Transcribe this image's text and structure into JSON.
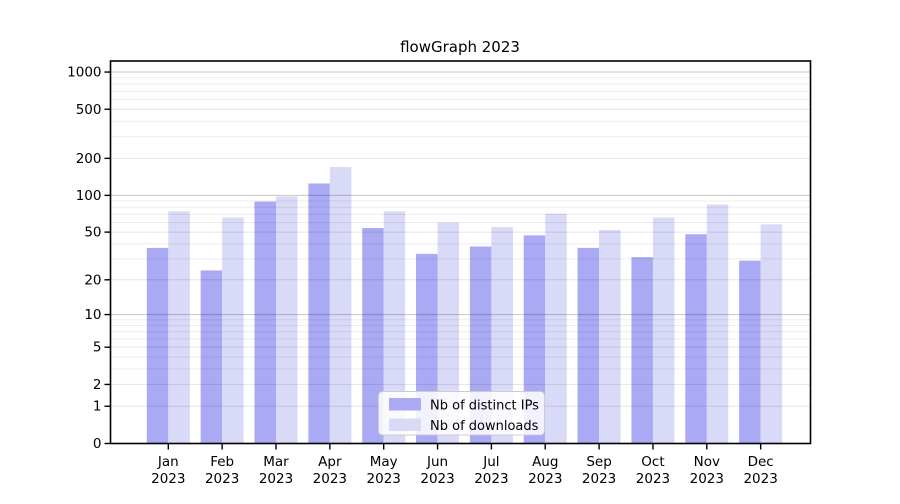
{
  "title": "flowGraph 2023",
  "chart_data": {
    "type": "bar",
    "title": "flowGraph 2023",
    "categories": [
      "Jan 2023",
      "Feb 2023",
      "Mar 2023",
      "Apr 2023",
      "May 2023",
      "Jun 2023",
      "Jul 2023",
      "Aug 2023",
      "Sep 2023",
      "Oct 2023",
      "Nov 2023",
      "Dec 2023"
    ],
    "series": [
      {
        "name": "Nb of distinct IPs",
        "color": "#a9a9f4",
        "values": [
          37,
          24,
          89,
          125,
          54,
          33,
          38,
          47,
          37,
          31,
          48,
          29
        ]
      },
      {
        "name": "Nb of downloads",
        "color": "#d9d9f8",
        "values": [
          74,
          66,
          98,
          170,
          74,
          60,
          55,
          71,
          52,
          66,
          84,
          58
        ]
      }
    ],
    "yscale": "log1p",
    "yticks": [
      0,
      1,
      2,
      5,
      10,
      20,
      50,
      100,
      200,
      500,
      1000
    ],
    "ylim": [
      0,
      1230
    ],
    "xlabel": "",
    "ylabel": "",
    "grid": true,
    "legend_position": "lower center",
    "background_color": "#ffffff",
    "axis_color": "#000000",
    "legend_border_color": "#cccccc"
  }
}
